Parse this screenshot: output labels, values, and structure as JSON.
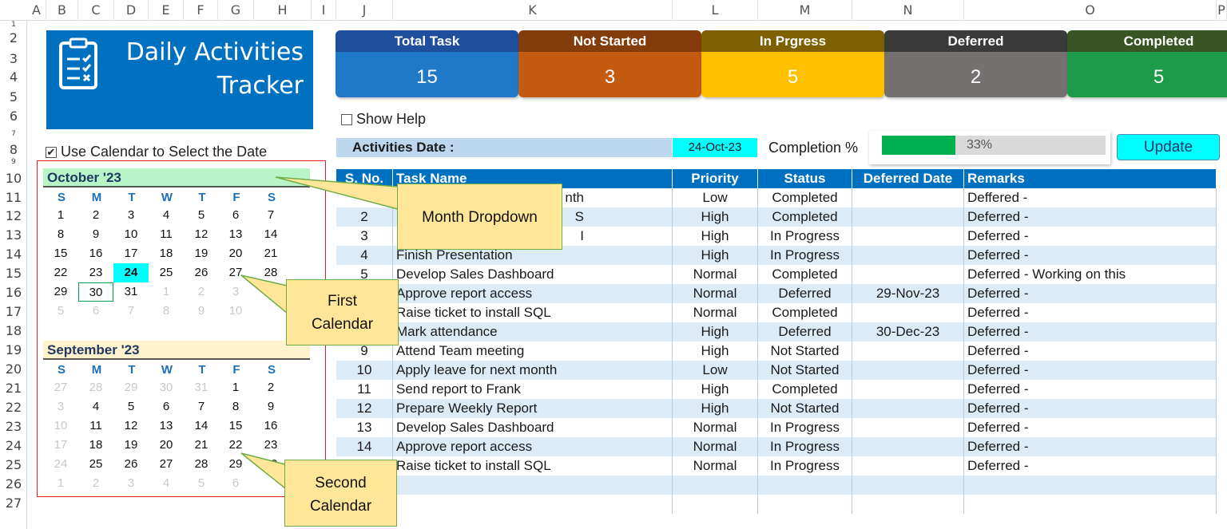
{
  "columns": [
    "A",
    "B",
    "C",
    "D",
    "E",
    "F",
    "G",
    "H",
    "I",
    "J",
    "K",
    "L",
    "M",
    "N",
    "O",
    "P"
  ],
  "rows": [
    "1",
    "2",
    "3",
    "4",
    "5",
    "6",
    "7",
    "8",
    "9",
    "10",
    "11",
    "12",
    "13",
    "14",
    "15",
    "16",
    "17",
    "18",
    "19",
    "20",
    "21",
    "22",
    "23",
    "24",
    "25",
    "26",
    "27"
  ],
  "title": {
    "line1": "Daily Activities",
    "line2": "Tracker",
    "icon": "clipboard-checklist-icon"
  },
  "kpis": [
    {
      "label": "Total Task",
      "value": "15",
      "head_color": "#1f4e9c",
      "body_color": "#1f78c8"
    },
    {
      "label": "Not Started",
      "value": "3",
      "head_color": "#843c0c",
      "body_color": "#c55a11"
    },
    {
      "label": "In Prgress",
      "value": "5",
      "head_color": "#7f6000",
      "body_color": "#ffc000"
    },
    {
      "label": "Deferred",
      "value": "2",
      "head_color": "#3a3a3a",
      "body_color": "#757171"
    },
    {
      "label": "Completed",
      "value": "5",
      "head_color": "#375623",
      "body_color": "#1e9b48"
    }
  ],
  "show_help": {
    "label": "Show Help",
    "checked": false
  },
  "use_calendar": {
    "label": "Use Calendar to Select the Date",
    "checked": true,
    "mark": "✔"
  },
  "activities": {
    "label": "Activities Date :",
    "date": "24-Oct-23"
  },
  "completion": {
    "label": "Completion %",
    "percent": 33,
    "text": "33%"
  },
  "update_button": "Update",
  "table": {
    "headers": [
      "S. No.",
      "Task Name",
      "Priority",
      "Status",
      "Deferred Date",
      "Remarks"
    ],
    "rows": [
      {
        "sno": "",
        "task": "nth",
        "priority": "Low",
        "status": "Completed",
        "deferred": "",
        "remarks": "Deffered -"
      },
      {
        "sno": "2",
        "task": "S",
        "priority": "High",
        "status": "Completed",
        "deferred": "",
        "remarks": "Deferred -"
      },
      {
        "sno": "3",
        "task": "I",
        "priority": "High",
        "status": "In Progress",
        "deferred": "",
        "remarks": "Deferred -"
      },
      {
        "sno": "4",
        "task": "Finish Presentation",
        "priority": "High",
        "status": "In Progress",
        "deferred": "",
        "remarks": "Deferred -"
      },
      {
        "sno": "5",
        "task": "Develop Sales Dashboard",
        "priority": "Normal",
        "status": "Completed",
        "deferred": "",
        "remarks": "Deferred - Working on this"
      },
      {
        "sno": "",
        "task": "Approve report access",
        "priority": "Normal",
        "status": "Deferred",
        "deferred": "29-Nov-23",
        "remarks": "Deferred -"
      },
      {
        "sno": "",
        "task": "Raise ticket to install SQL",
        "priority": "Normal",
        "status": "Completed",
        "deferred": "",
        "remarks": "Deferred -"
      },
      {
        "sno": "",
        "task": "Mark attendance",
        "priority": "High",
        "status": "Deferred",
        "deferred": "30-Dec-23",
        "remarks": "Deferred -"
      },
      {
        "sno": "9",
        "task": "Attend Team meeting",
        "priority": "High",
        "status": "Not Started",
        "deferred": "",
        "remarks": "Deferred -"
      },
      {
        "sno": "10",
        "task": "Apply leave for next month",
        "priority": "Low",
        "status": "Not Started",
        "deferred": "",
        "remarks": "Deferred -"
      },
      {
        "sno": "11",
        "task": "Send report to Frank",
        "priority": "High",
        "status": "Completed",
        "deferred": "",
        "remarks": "Deferred -"
      },
      {
        "sno": "12",
        "task": "Prepare Weekly Report",
        "priority": "High",
        "status": "Not Started",
        "deferred": "",
        "remarks": "Deferred -"
      },
      {
        "sno": "13",
        "task": "Develop Sales Dashboard",
        "priority": "Normal",
        "status": "In Progress",
        "deferred": "",
        "remarks": "Deferred -"
      },
      {
        "sno": "14",
        "task": "Approve report access",
        "priority": "Normal",
        "status": "In Progress",
        "deferred": "",
        "remarks": "Deferred -"
      },
      {
        "sno": "",
        "task": "Raise ticket to install SQL",
        "priority": "Normal",
        "status": "In Progress",
        "deferred": "",
        "remarks": "Deferred -"
      },
      {
        "sno": "",
        "task": "",
        "priority": "",
        "status": "",
        "deferred": "",
        "remarks": ""
      },
      {
        "sno": "",
        "task": "",
        "priority": "",
        "status": "",
        "deferred": "",
        "remarks": ""
      }
    ]
  },
  "calendars": [
    {
      "title": "October '23",
      "title_bg": "#b7f5c7",
      "dow": [
        "S",
        "M",
        "T",
        "W",
        "T",
        "F",
        "S"
      ],
      "weeks": [
        [
          "1",
          "2",
          "3",
          "4",
          "5",
          "6",
          "7"
        ],
        [
          "8",
          "9",
          "10",
          "11",
          "12",
          "13",
          "14"
        ],
        [
          "15",
          "16",
          "17",
          "18",
          "19",
          "20",
          "21"
        ],
        [
          "22",
          "23",
          "24",
          "25",
          "26",
          "27",
          "28"
        ],
        [
          "29",
          "30",
          "31",
          "1",
          "2",
          "3",
          ""
        ],
        [
          "5",
          "6",
          "7",
          "8",
          "9",
          "10",
          ""
        ]
      ],
      "muted": [
        [
          4,
          3
        ],
        [
          4,
          4
        ],
        [
          4,
          5
        ],
        [
          5,
          0
        ],
        [
          5,
          1
        ],
        [
          5,
          2
        ],
        [
          5,
          3
        ],
        [
          5,
          4
        ],
        [
          5,
          5
        ]
      ],
      "selected": [
        3,
        2
      ],
      "today": [
        4,
        1
      ]
    },
    {
      "title": "September '23",
      "title_bg": "#fff2cc",
      "dow": [
        "S",
        "M",
        "T",
        "W",
        "T",
        "F",
        "S"
      ],
      "weeks": [
        [
          "27",
          "28",
          "29",
          "30",
          "31",
          "1",
          "2"
        ],
        [
          "3",
          "4",
          "5",
          "6",
          "7",
          "8",
          "9"
        ],
        [
          "10",
          "11",
          "12",
          "13",
          "14",
          "15",
          "16"
        ],
        [
          "17",
          "18",
          "19",
          "20",
          "21",
          "22",
          "23"
        ],
        [
          "24",
          "25",
          "26",
          "27",
          "28",
          "29",
          "30"
        ],
        [
          "1",
          "2",
          "3",
          "4",
          "5",
          "6",
          ""
        ]
      ],
      "muted": [
        [
          0,
          0
        ],
        [
          0,
          1
        ],
        [
          0,
          2
        ],
        [
          0,
          3
        ],
        [
          0,
          4
        ],
        [
          1,
          0
        ],
        [
          2,
          0
        ],
        [
          3,
          0
        ],
        [
          4,
          0
        ],
        [
          5,
          0
        ],
        [
          5,
          1
        ],
        [
          5,
          2
        ],
        [
          5,
          3
        ],
        [
          5,
          4
        ],
        [
          5,
          5
        ]
      ]
    }
  ],
  "callouts": [
    {
      "name": "month-dropdown-callout",
      "lines": [
        "Month Dropdown"
      ]
    },
    {
      "name": "first-calendar-callout",
      "lines": [
        "First",
        "Calendar"
      ]
    },
    {
      "name": "second-calendar-callout",
      "lines": [
        "Second",
        "Calendar"
      ]
    }
  ]
}
